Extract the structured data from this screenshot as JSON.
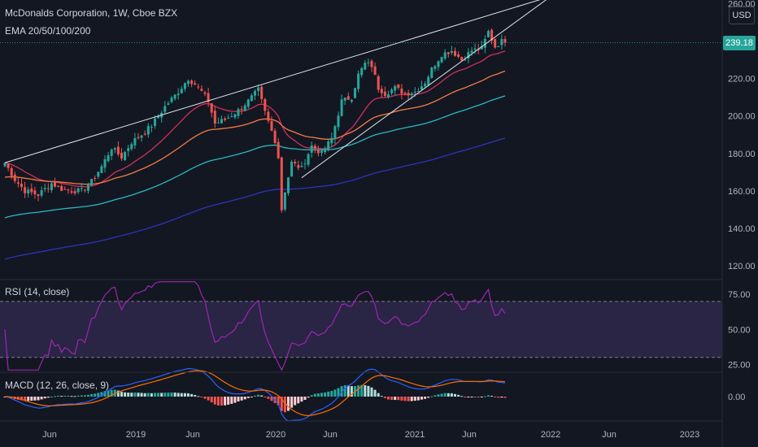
{
  "header": {
    "symbol_line": "McDonalds Corporation, 1W, Cboe BZX",
    "ema_line": "EMA 20/50/100/200",
    "rsi_line": "RSI (14, close)",
    "macd_line": "MACD (12, 26, close, 9)",
    "currency": "USD",
    "last_price": "239.18"
  },
  "colors": {
    "background": "#131722",
    "up": "#26a69a",
    "down": "#ef5350",
    "ema20": "#d0315a",
    "ema50": "#f57c43",
    "ema100": "#2bb9c0",
    "ema200": "#2b35b8",
    "trendline": "#e0e3eb",
    "rsi_line": "#9c27b0",
    "rsi_band": "#7e57c2",
    "macd_line": "#2962ff",
    "signal_line": "#ff6d00",
    "price_tag": "#26a69a"
  },
  "chart_data": [
    {
      "type": "candlestick",
      "title": "McDonalds Corporation, 1W, Cboe BZX",
      "ylim": [
        113,
        262
      ],
      "y_ticks": [
        "120.00",
        "140.00",
        "160.00",
        "180.00",
        "200.00",
        "220.00",
        "239.18",
        "260.00"
      ],
      "x_ticks": [
        "Jun",
        "2019",
        "Jun",
        "2020",
        "Jun",
        "2021",
        "Jun",
        "2022",
        "Jun",
        "2023"
      ],
      "grid": false,
      "last_price": 239.18,
      "close_anchors": [
        [
          0,
          175
        ],
        [
          3,
          166
        ],
        [
          6,
          160
        ],
        [
          10,
          158
        ],
        [
          14,
          164
        ],
        [
          17,
          161
        ],
        [
          20,
          160
        ],
        [
          23,
          160
        ],
        [
          26,
          165
        ],
        [
          29,
          173
        ],
        [
          32,
          183
        ],
        [
          35,
          178
        ],
        [
          38,
          186
        ],
        [
          41,
          190
        ],
        [
          44,
          195
        ],
        [
          48,
          205
        ],
        [
          52,
          213
        ],
        [
          55,
          220
        ],
        [
          57,
          217
        ],
        [
          59,
          213
        ],
        [
          61,
          208
        ],
        [
          63,
          196
        ],
        [
          66,
          198
        ],
        [
          70,
          203
        ],
        [
          73,
          208
        ],
        [
          76,
          214
        ],
        [
          78,
          202
        ],
        [
          81,
          187
        ],
        [
          82,
          178
        ],
        [
          83,
          150
        ],
        [
          84,
          160
        ],
        [
          86,
          175
        ],
        [
          89,
          172
        ],
        [
          92,
          184
        ],
        [
          95,
          180
        ],
        [
          98,
          188
        ],
        [
          101,
          208
        ],
        [
          104,
          210
        ],
        [
          106,
          222
        ],
        [
          108,
          228
        ],
        [
          110,
          227
        ],
        [
          112,
          215
        ],
        [
          114,
          212
        ],
        [
          117,
          215
        ],
        [
          120,
          212
        ],
        [
          123,
          213
        ],
        [
          126,
          218
        ],
        [
          128,
          225
        ],
        [
          131,
          233
        ],
        [
          134,
          235
        ],
        [
          137,
          230
        ],
        [
          140,
          235
        ],
        [
          143,
          236
        ],
        [
          145,
          245
        ],
        [
          147,
          237
        ],
        [
          149,
          240
        ],
        [
          150,
          239.18
        ]
      ],
      "ema_series": [
        "EMA 20",
        "EMA 50",
        "EMA 100",
        "EMA 200"
      ],
      "trendlines": [
        {
          "from": [
            0,
            175
          ],
          "to": [
            162,
            263
          ]
        },
        {
          "from": [
            89,
            167
          ],
          "to": [
            163,
            263
          ]
        }
      ]
    },
    {
      "type": "line",
      "title": "RSI (14, close)",
      "ylim": [
        20,
        85
      ],
      "y_ticks": [
        "75.00",
        "50.00",
        "25.00"
      ],
      "band": [
        30,
        70
      ],
      "values_from_price": true
    },
    {
      "type": "bar",
      "title": "MACD (12, 26, close, 9)",
      "y_ticks": [
        "0.00"
      ],
      "series": [
        "MACD",
        "Signal",
        "Histogram"
      ],
      "values_from_price": true
    }
  ]
}
